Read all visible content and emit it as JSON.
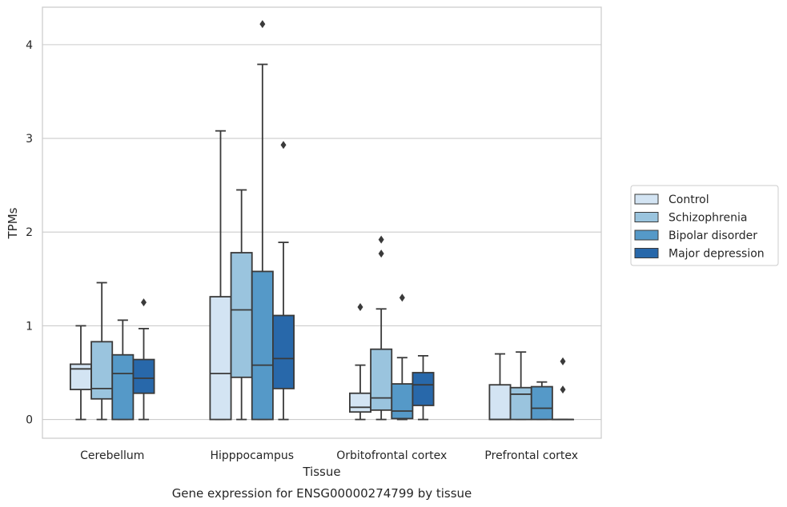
{
  "chart_data": {
    "type": "box",
    "caption": "Gene expression for ENSG00000274799 by tissue",
    "xlabel": "Tissue",
    "ylabel": "TPMs",
    "ylim": [
      -0.2,
      4.4
    ],
    "yticks": [
      0,
      1,
      2,
      3,
      4
    ],
    "grid": "horizontal",
    "legend_position": "right",
    "categories": [
      "Cerebellum",
      "Hipppocampus",
      "Orbitofrontal cortex",
      "Prefrontal cortex"
    ],
    "series": [
      {
        "name": "Control",
        "color": "#d3e4f3",
        "boxes": [
          {
            "whislo": 0.0,
            "q1": 0.32,
            "med": 0.54,
            "q3": 0.59,
            "whishi": 1.0,
            "fliers": []
          },
          {
            "whislo": 0.0,
            "q1": 0.0,
            "med": 0.49,
            "q3": 1.31,
            "whishi": 3.08,
            "fliers": []
          },
          {
            "whislo": 0.0,
            "q1": 0.08,
            "med": 0.13,
            "q3": 0.28,
            "whishi": 0.58,
            "fliers": [
              1.2
            ]
          },
          {
            "whislo": 0.0,
            "q1": 0.0,
            "med": 0.0,
            "q3": 0.37,
            "whishi": 0.7,
            "fliers": []
          }
        ]
      },
      {
        "name": "Schizophrenia",
        "color": "#9ac4de",
        "boxes": [
          {
            "whislo": 0.0,
            "q1": 0.22,
            "med": 0.33,
            "q3": 0.83,
            "whishi": 1.46,
            "fliers": []
          },
          {
            "whislo": 0.0,
            "q1": 0.45,
            "med": 1.17,
            "q3": 1.78,
            "whishi": 2.45,
            "fliers": []
          },
          {
            "whislo": 0.0,
            "q1": 0.1,
            "med": 0.23,
            "q3": 0.75,
            "whishi": 1.18,
            "fliers": [
              1.77,
              1.92
            ]
          },
          {
            "whislo": 0.0,
            "q1": 0.0,
            "med": 0.27,
            "q3": 0.34,
            "whishi": 0.72,
            "fliers": []
          }
        ]
      },
      {
        "name": "Bipolar disorder",
        "color": "#5599c8",
        "boxes": [
          {
            "whislo": 0.0,
            "q1": 0.0,
            "med": 0.49,
            "q3": 0.69,
            "whishi": 1.06,
            "fliers": []
          },
          {
            "whislo": 0.0,
            "q1": 0.0,
            "med": 0.58,
            "q3": 1.58,
            "whishi": 3.79,
            "fliers": [
              4.22
            ]
          },
          {
            "whislo": 0.0,
            "q1": 0.01,
            "med": 0.09,
            "q3": 0.38,
            "whishi": 0.66,
            "fliers": [
              1.3
            ]
          },
          {
            "whislo": 0.0,
            "q1": 0.0,
            "med": 0.12,
            "q3": 0.35,
            "whishi": 0.4,
            "fliers": []
          }
        ]
      },
      {
        "name": "Major depression",
        "color": "#2868aa",
        "boxes": [
          {
            "whislo": 0.0,
            "q1": 0.28,
            "med": 0.44,
            "q3": 0.64,
            "whishi": 0.97,
            "fliers": [
              1.25
            ]
          },
          {
            "whislo": 0.0,
            "q1": 0.33,
            "med": 0.65,
            "q3": 1.11,
            "whishi": 1.89,
            "fliers": [
              2.93
            ]
          },
          {
            "whislo": 0.0,
            "q1": 0.15,
            "med": 0.37,
            "q3": 0.5,
            "whishi": 0.68,
            "fliers": []
          },
          {
            "whislo": 0.0,
            "q1": 0.0,
            "med": 0.0,
            "q3": 0.0,
            "whishi": 0.0,
            "fliers": [
              0.32,
              0.62
            ]
          }
        ]
      }
    ]
  }
}
